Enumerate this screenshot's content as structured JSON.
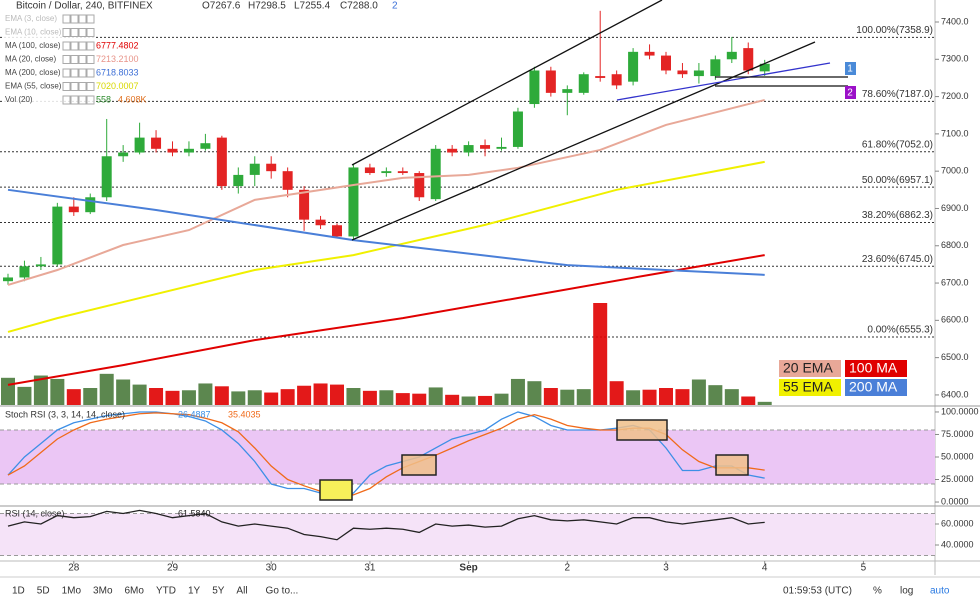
{
  "header": {
    "symbol": "Bitcoin / Dollar, 240, BITFINEX",
    "open": "O7267.6",
    "high": "H7298.5",
    "low": "L7255.4",
    "close": "C7288.0",
    "badge": "2"
  },
  "indicators": [
    {
      "name": "EMA (3, close)",
      "values": [],
      "colors": []
    },
    {
      "name": "EMA (10, close)",
      "values": [],
      "colors": []
    },
    {
      "name": "MA (100, close)",
      "values": [
        "6777.4802"
      ],
      "colors": [
        "#e00000"
      ]
    },
    {
      "name": "MA (20, close)",
      "values": [
        "7213.2100"
      ],
      "colors": [
        "#e8948a"
      ]
    },
    {
      "name": "MA (200, close)",
      "values": [
        "6718.8033"
      ],
      "colors": [
        "#3d6fd6"
      ]
    },
    {
      "name": "EMA (55, close)",
      "values": [
        "7020.0007"
      ],
      "colors": [
        "#d8d800"
      ]
    },
    {
      "name": "Vol (20)",
      "values": [
        "558",
        "4.608K"
      ],
      "colors": [
        "#2e8b2e",
        "#e07020"
      ]
    }
  ],
  "markers": [
    "1",
    "2"
  ],
  "chart_data": [
    {
      "type": "candlestick",
      "up_color": "#2eaa3a",
      "down_color": "#e32424",
      "volume_up_color": "#4a7a3c",
      "volume_down_color": "#e00000",
      "ylim": [
        6373,
        7459
      ],
      "yticks": [
        {
          "value": 6400,
          "label": "6400.0"
        },
        {
          "value": 6500,
          "label": "6500.0"
        },
        {
          "value": 6600,
          "label": "6600.0"
        },
        {
          "value": 6700,
          "label": "6700.0"
        },
        {
          "value": 6800,
          "label": "6800.0"
        },
        {
          "value": 6900,
          "label": "6900.0"
        },
        {
          "value": 7000,
          "label": "7000.0"
        },
        {
          "value": 7100,
          "label": "7100.0"
        },
        {
          "value": 7200,
          "label": "7200.0"
        },
        {
          "value": 7300,
          "label": "7300.0"
        },
        {
          "value": 7400,
          "label": "7400.0"
        }
      ],
      "fib_levels": [
        {
          "value": 7358.9,
          "label": "100.00%(7358.9)"
        },
        {
          "value": 7187.0,
          "label": "78.60%(7187.0)"
        },
        {
          "value": 7052.0,
          "label": "61.80%(7052.0)"
        },
        {
          "value": 6957.1,
          "label": "50.00%(6957.1)"
        },
        {
          "value": 6862.3,
          "label": "38.20%(6862.3)"
        },
        {
          "value": 6745.0,
          "label": "23.60%(6745.0)"
        },
        {
          "value": 6555.3,
          "label": "0.00%(6555.3)"
        }
      ],
      "open": [
        6705,
        6715,
        6745,
        6750,
        6905,
        6890,
        6930,
        7040,
        7050,
        7090,
        7060,
        7050,
        7060,
        7090,
        6960,
        6990,
        7020,
        7000,
        6950,
        6870,
        6855,
        6825,
        7010,
        6995,
        7000,
        6995,
        6925,
        7060,
        7050,
        7070,
        7060,
        7065,
        7180,
        7270,
        7210,
        7210,
        7255,
        7260,
        7240,
        7320,
        7310,
        7270,
        7255,
        7255,
        7300,
        7330,
        7267.6
      ],
      "high": [
        6725,
        6760,
        6770,
        6915,
        6930,
        6940,
        7140,
        7070,
        7130,
        7110,
        7080,
        7080,
        7100,
        7095,
        7010,
        7040,
        7040,
        7010,
        6960,
        6880,
        6860,
        7020,
        7020,
        7010,
        7010,
        7000,
        7070,
        7070,
        7080,
        7085,
        7090,
        7170,
        7280,
        7280,
        7230,
        7265,
        7430,
        7270,
        7330,
        7340,
        7320,
        7290,
        7290,
        7310,
        7360,
        7345,
        7298.5
      ],
      "low": [
        6695,
        6705,
        6735,
        6745,
        6880,
        6885,
        6920,
        7025,
        7045,
        7050,
        7040,
        7040,
        7055,
        6950,
        6940,
        6960,
        6980,
        6930,
        6840,
        6845,
        6820,
        6815,
        6990,
        6985,
        6990,
        6920,
        6920,
        7040,
        7040,
        7040,
        7055,
        7060,
        7170,
        7200,
        7150,
        7205,
        7240,
        7220,
        7230,
        7300,
        7260,
        7250,
        7235,
        7245,
        7290,
        7260,
        7255.4
      ],
      "close": [
        6715,
        6745,
        6750,
        6905,
        6890,
        6930,
        7040,
        7050,
        7090,
        7060,
        7050,
        7060,
        7075,
        6960,
        6990,
        7020,
        7000,
        6950,
        6870,
        6855,
        6825,
        7010,
        6995,
        7000,
        6995,
        6930,
        7060,
        7050,
        7070,
        7060,
        7065,
        7160,
        7270,
        7210,
        7220,
        7260,
        7250,
        7230,
        7320,
        7310,
        7270,
        7260,
        7270,
        7300,
        7320,
        7270,
        7288
      ],
      "volume": [
        4800,
        3200,
        5200,
        4600,
        2800,
        3000,
        5500,
        4500,
        3600,
        3000,
        2500,
        2600,
        3800,
        3300,
        2400,
        2600,
        2200,
        2800,
        3400,
        3800,
        3600,
        3000,
        2500,
        2600,
        2100,
        2000,
        3100,
        1800,
        1500,
        1600,
        2000,
        4600,
        4200,
        3000,
        2700,
        2800,
        18000,
        4200,
        2600,
        2700,
        3000,
        2800,
        4500,
        3500,
        2800,
        1500,
        558
      ],
      "series": [
        {
          "name": "20 EMA",
          "color": "#e8a898",
          "x": [
            0,
            3,
            7,
            11,
            15,
            21,
            24,
            28,
            31,
            36,
            40,
            46
          ],
          "values": [
            6695,
            6735,
            6802,
            6842,
            6923,
            6963,
            6982,
            6990,
            7009,
            7057,
            7124,
            7191
          ]
        },
        {
          "name": "100 MA",
          "color": "#e00000",
          "x": [
            0,
            7,
            15,
            24,
            31,
            39,
            46
          ],
          "values": [
            6427,
            6480,
            6547,
            6606,
            6660,
            6722,
            6775
          ]
        },
        {
          "name": "55 EMA",
          "color": "#f0f000",
          "x": [
            0,
            3,
            15,
            21,
            29,
            37,
            46
          ],
          "values": [
            6569,
            6606,
            6735,
            6775,
            6856,
            6950,
            7025
          ]
        },
        {
          "name": "200 MA",
          "color": "#4a7fd8",
          "x": [
            0,
            9,
            21,
            34,
            46
          ],
          "values": [
            6950,
            6896,
            6815,
            6748,
            6722
          ]
        }
      ]
    },
    {
      "type": "line",
      "title": "Stoch RSI (3, 3, 14, 14, close)",
      "legend_values": [
        "26.4887",
        "35.4035"
      ],
      "ylim": [
        -3.3,
        104.4
      ],
      "band": [
        20,
        80
      ],
      "band_color": "#ebc6f5",
      "yticks": [
        {
          "value": 0,
          "label": "0.0000"
        },
        {
          "value": 25,
          "label": "25.0000"
        },
        {
          "value": 50,
          "label": "50.0000"
        },
        {
          "value": 75,
          "label": "75.0000"
        },
        {
          "value": 100,
          "label": "100.0000"
        }
      ],
      "series": [
        {
          "color": "#3d8fe6",
          "values": [
            30,
            50,
            65,
            80,
            88,
            92,
            96,
            98,
            100,
            100,
            98,
            95,
            90,
            80,
            65,
            45,
            20,
            15,
            15,
            10,
            5,
            10,
            30,
            40,
            45,
            50,
            60,
            70,
            75,
            80,
            92,
            100,
            95,
            85,
            80,
            80,
            80,
            82,
            85,
            80,
            60,
            35,
            35,
            40,
            40,
            30,
            26.49
          ]
        },
        {
          "color": "#f06a1a",
          "values": [
            30,
            40,
            55,
            70,
            80,
            88,
            92,
            95,
            98,
            99,
            98,
            97,
            93,
            88,
            78,
            60,
            40,
            25,
            18,
            12,
            8,
            8,
            15,
            28,
            38,
            45,
            52,
            60,
            68,
            75,
            82,
            92,
            97,
            92,
            85,
            82,
            80,
            80,
            82,
            82,
            75,
            58,
            45,
            38,
            38,
            38,
            35.4
          ]
        }
      ]
    },
    {
      "type": "line",
      "title": "RSI (14, close)",
      "legend_values": [
        "61.5840"
      ],
      "ylim": [
        25.7,
        76.2
      ],
      "band": [
        30,
        70
      ],
      "band_color": "#f5e3f8",
      "yticks": [
        {
          "value": 40,
          "label": "40.0000"
        },
        {
          "value": 60,
          "label": "60.0000"
        }
      ],
      "xticks": [
        {
          "value": 4,
          "label": "28"
        },
        {
          "value": 10,
          "label": "29"
        },
        {
          "value": 16,
          "label": "30"
        },
        {
          "value": 22,
          "label": "31"
        },
        {
          "value": 28,
          "label": "Sep"
        },
        {
          "value": 34,
          "label": "2"
        },
        {
          "value": 40,
          "label": "3"
        },
        {
          "value": 46,
          "label": "4"
        },
        {
          "value": 52,
          "label": "5"
        }
      ],
      "series": [
        {
          "color": "#222222",
          "values": [
            58,
            62,
            60,
            68,
            66,
            67,
            72,
            70,
            73,
            70,
            66,
            68,
            70,
            62,
            58,
            60,
            58,
            56,
            50,
            48,
            45,
            56,
            55,
            56,
            55,
            52,
            60,
            58,
            59,
            57,
            58,
            65,
            68,
            64,
            63,
            64,
            62,
            60,
            66,
            66,
            62,
            60,
            62,
            64,
            66,
            60,
            61.584
          ]
        }
      ]
    }
  ],
  "toolbar": {
    "ranges": [
      "1D",
      "5D",
      "1Mo",
      "3Mo",
      "6Mo",
      "YTD",
      "1Y",
      "5Y",
      "All"
    ],
    "goto": "Go to...",
    "time": "01:59:53 (UTC)",
    "percent": "%",
    "log": "log",
    "auto": "auto"
  }
}
